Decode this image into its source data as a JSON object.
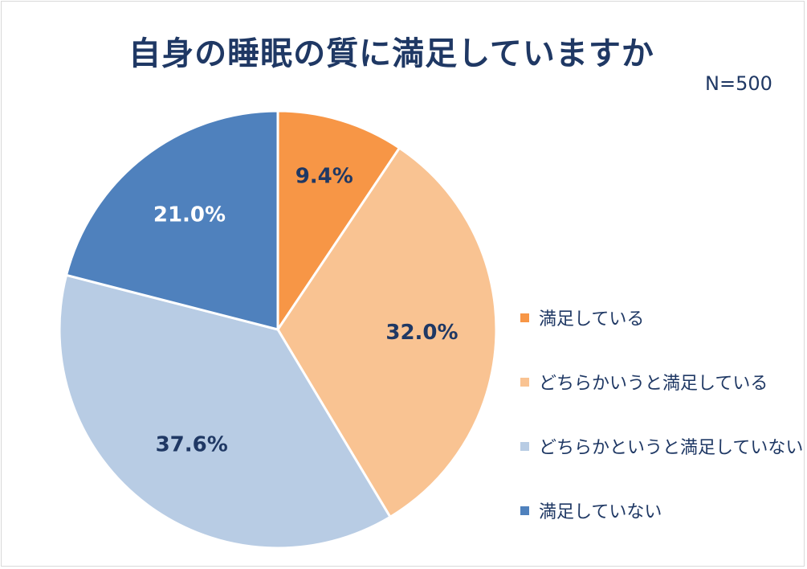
{
  "chart_data": {
    "type": "pie",
    "title": "自身の睡眠の質に満足していますか",
    "note": "N=500",
    "legend_position": "right",
    "slices": [
      {
        "name": "満足している",
        "value": 9.4,
        "label": "9.4%",
        "color": "#f79646",
        "label_color": "#1f3864"
      },
      {
        "name": "どちらかいうと満足している",
        "value": 32.0,
        "label": "32.0%",
        "color": "#f9c392",
        "label_color": "#1f3864"
      },
      {
        "name": "どちらかというと満足していない",
        "value": 37.6,
        "label": "37.6%",
        "color": "#b8cce4",
        "label_color": "#1f3864"
      },
      {
        "name": "満足していない",
        "value": 21.0,
        "label": "21.0%",
        "color": "#4f81bd",
        "label_color": "#ffffff"
      }
    ]
  }
}
